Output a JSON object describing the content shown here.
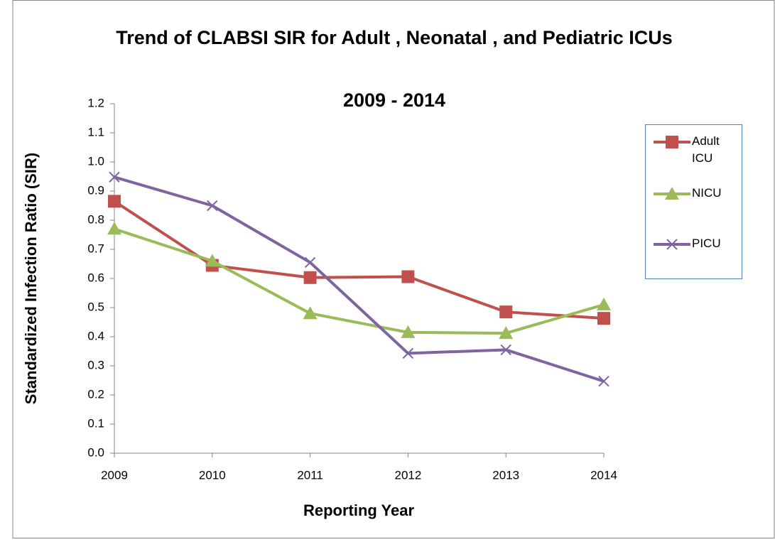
{
  "chart_data": {
    "type": "line",
    "title": "Trend of CLABSI SIR for Adult , Neonatal , and Pediatric ICUs",
    "subtitle": "2009 - 2014",
    "x_label": "Reporting Year",
    "y_label": "Standardized Infection Ratio (SIR)",
    "categories": [
      "2009",
      "2010",
      "2011",
      "2012",
      "2013",
      "2014"
    ],
    "series": [
      {
        "name": "Adult ICU",
        "color": "#c0504d",
        "marker": "square",
        "values": [
          0.865,
          0.645,
          0.603,
          0.606,
          0.485,
          0.463
        ]
      },
      {
        "name": "NICU",
        "color": "#9bbb59",
        "marker": "triangle",
        "values": [
          0.77,
          0.66,
          0.48,
          0.415,
          0.412,
          0.51
        ]
      },
      {
        "name": "PICU",
        "color": "#8064a2",
        "marker": "x",
        "values": [
          0.948,
          0.85,
          0.655,
          0.343,
          0.355,
          0.247
        ]
      }
    ],
    "ylim": [
      0,
      1.2
    ],
    "yticks": [
      {
        "value": 0,
        "label": "0.0"
      },
      0.1,
      0.2,
      0.3,
      0.4,
      0.5,
      0.6,
      0.7,
      0.8,
      0.9,
      {
        "value": 1,
        "label": "1.0"
      },
      1.1,
      1.2
    ],
    "grid": false,
    "legend": "right"
  }
}
